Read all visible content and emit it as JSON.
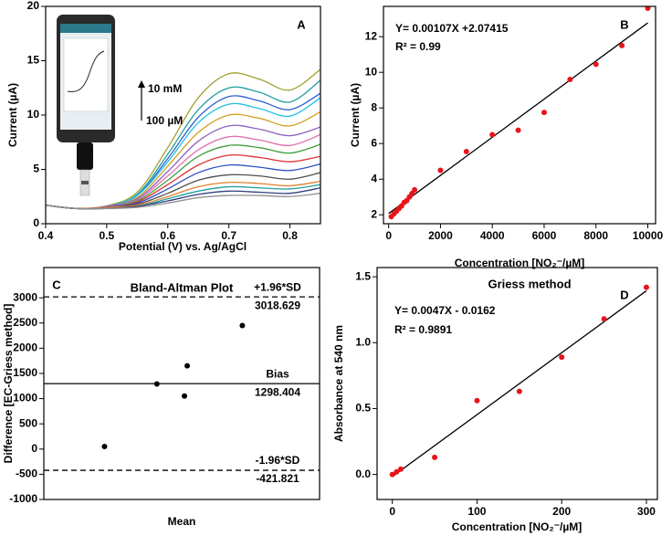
{
  "chart_data": [
    {
      "type": "line",
      "panel_label": "A",
      "xlabel": "Potential (V) vs. Ag/AgCl",
      "ylabel": "Current (µA)",
      "annotations": [
        "10 mM",
        "100 µM"
      ],
      "x": [
        0.4,
        0.45,
        0.5,
        0.55,
        0.6,
        0.65,
        0.7,
        0.75,
        0.8,
        0.85
      ],
      "xlim": [
        0.4,
        0.85
      ],
      "xticks": [
        {
          "value": 0.4,
          "label": "0.4"
        },
        {
          "value": 0.5,
          "label": "0.5"
        },
        {
          "value": 0.6,
          "label": "0.6"
        },
        {
          "value": 0.7,
          "label": "0.7"
        },
        {
          "value": 0.8,
          "label": "0.8"
        }
      ],
      "ylim": [
        0,
        20
      ],
      "yticks": [
        0,
        5,
        10,
        15,
        20
      ],
      "series": [
        {
          "color": "#a0a030",
          "values": [
            1.7,
            1.4,
            1.65,
            2.9,
            7.0,
            11.6,
            13.8,
            13.3,
            12.3,
            14.2
          ]
        },
        {
          "color": "#1f9e9e",
          "values": [
            1.7,
            1.4,
            1.6,
            2.7,
            6.4,
            10.5,
            12.5,
            12.1,
            11.2,
            13.2
          ]
        },
        {
          "color": "#2f5fd0",
          "values": [
            1.7,
            1.4,
            1.6,
            2.6,
            6.0,
            9.8,
            11.7,
            11.3,
            10.5,
            12.0
          ]
        },
        {
          "color": "#22c0e0",
          "values": [
            1.7,
            1.4,
            1.6,
            2.6,
            5.7,
            9.3,
            11.0,
            10.6,
            9.9,
            11.6
          ]
        },
        {
          "color": "#d0a020",
          "values": [
            1.7,
            1.4,
            1.6,
            2.4,
            5.3,
            8.4,
            10.0,
            9.7,
            9.0,
            10.3
          ]
        },
        {
          "color": "#9060c0",
          "values": [
            1.7,
            1.4,
            1.6,
            2.3,
            4.8,
            7.6,
            9.0,
            8.7,
            8.1,
            8.9
          ]
        },
        {
          "color": "#e070b0",
          "values": [
            1.7,
            1.4,
            1.5,
            2.2,
            4.4,
            6.8,
            8.0,
            7.7,
            7.2,
            8.2
          ]
        },
        {
          "color": "#40a040",
          "values": [
            1.7,
            1.4,
            1.5,
            2.1,
            4.0,
            6.2,
            7.2,
            7.0,
            6.5,
            7.3
          ]
        },
        {
          "color": "#e03030",
          "values": [
            1.7,
            1.4,
            1.5,
            2.0,
            3.6,
            5.4,
            6.3,
            6.1,
            5.7,
            6.2
          ]
        },
        {
          "color": "#3050c0",
          "values": [
            1.7,
            1.4,
            1.5,
            1.9,
            3.2,
            4.7,
            5.4,
            5.2,
            4.9,
            5.5
          ]
        },
        {
          "color": "#505050",
          "values": [
            1.7,
            1.4,
            1.5,
            1.8,
            2.8,
            4.0,
            4.5,
            4.4,
            4.1,
            4.7
          ]
        },
        {
          "color": "#e08030",
          "values": [
            1.7,
            1.4,
            1.5,
            1.7,
            2.5,
            3.4,
            3.8,
            3.7,
            3.5,
            3.9
          ]
        },
        {
          "color": "#20a0a0",
          "values": [
            1.7,
            1.4,
            1.4,
            1.6,
            2.3,
            3.0,
            3.4,
            3.3,
            3.2,
            3.6
          ]
        },
        {
          "color": "#304080",
          "values": [
            1.7,
            1.4,
            1.4,
            1.6,
            2.1,
            2.7,
            3.0,
            2.9,
            2.8,
            3.3
          ]
        },
        {
          "color": "#909090",
          "values": [
            1.7,
            1.4,
            1.4,
            1.5,
            1.9,
            2.4,
            2.6,
            2.6,
            2.5,
            2.8
          ]
        }
      ]
    },
    {
      "type": "scatter",
      "panel_label": "B",
      "xlabel": "Concentration [NO₂⁻/µM]",
      "ylabel": "Current (µA)",
      "annotations": [
        "Y= 0.00107X +2.07415",
        "R² = 0.99"
      ],
      "color": "#e8141c",
      "x": [
        100,
        200,
        300,
        400,
        500,
        600,
        700,
        800,
        900,
        1000,
        2000,
        3000,
        4000,
        5000,
        6000,
        7000,
        8000,
        9000,
        10000
      ],
      "values": [
        1.9,
        2.05,
        2.2,
        2.35,
        2.5,
        2.7,
        2.8,
        3.0,
        3.2,
        3.4,
        4.5,
        5.55,
        6.5,
        6.75,
        7.75,
        9.6,
        10.45,
        11.5,
        13.6
      ],
      "fit": {
        "x": [
          0,
          10000
        ],
        "values": [
          2.07415,
          12.77415
        ]
      },
      "xlim": [
        -200,
        10300
      ],
      "xticks": [
        0,
        2000,
        4000,
        6000,
        8000,
        10000
      ],
      "ylim": [
        1.5,
        13.7
      ],
      "yticks": [
        2,
        4,
        6,
        8,
        10,
        12
      ]
    },
    {
      "type": "scatter",
      "panel_label": "C",
      "title": "Bland-Altman Plot",
      "xlabel": "Mean",
      "ylabel": "Difference [EC-Griess method]",
      "color": "#000000",
      "x": [
        22,
        41,
        51,
        52,
        72
      ],
      "values": [
        50,
        1290,
        1050,
        1650,
        2450
      ],
      "xlim": [
        0,
        100
      ],
      "ylim": [
        -1000,
        3600
      ],
      "yticks": [
        -1000,
        -500,
        0,
        500,
        1000,
        1500,
        2000,
        2500,
        3000
      ],
      "reference_lines": [
        {
          "label": "+1.96*SD",
          "value": 3018.629,
          "style": "dashed"
        },
        {
          "label": "Bias",
          "value": 1298.404,
          "style": "solid"
        },
        {
          "label": "-1.96*SD",
          "value": -421.821,
          "style": "dashed"
        }
      ]
    },
    {
      "type": "scatter",
      "panel_label": "D",
      "title": "Griess method",
      "xlabel": "Concentration [NO₂⁻/µM]",
      "ylabel": "Absorbance at 540 nm",
      "annotations": [
        "Y= 0.0047X - 0.0162",
        "R² = 0.9891"
      ],
      "color": "#e8141c",
      "x": [
        0,
        5,
        10,
        50,
        100,
        150,
        200,
        250,
        300
      ],
      "values": [
        0,
        0.02,
        0.04,
        0.13,
        0.56,
        0.63,
        0.89,
        1.18,
        1.42
      ],
      "fit": {
        "x": [
          0,
          300
        ],
        "values": [
          -0.0162,
          1.3938
        ]
      },
      "xlim": [
        -18,
        313
      ],
      "xticks": [
        0,
        100,
        200,
        300
      ],
      "ylim": [
        -0.19,
        1.57
      ],
      "yticks": [
        {
          "value": 0,
          "label": "0.0"
        },
        0.5,
        {
          "value": 1,
          "label": "1.0"
        },
        1.5
      ]
    }
  ]
}
